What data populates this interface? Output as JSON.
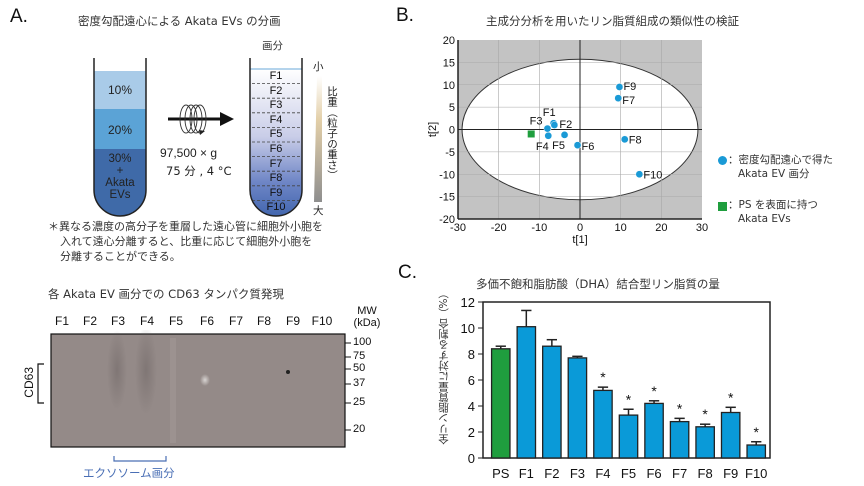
{
  "panelA": {
    "letter": "A.",
    "title": "密度勾配遠心による Akata EVs の分画",
    "tube_left": {
      "layers": [
        {
          "label": "10%",
          "color": "#a9cbe8"
        },
        {
          "label": "20%",
          "color": "#5ba3d6"
        },
        {
          "label_lines": [
            "30%",
            "+",
            "Akata",
            "EVs"
          ],
          "color": "#3f6aa8"
        }
      ]
    },
    "centrifuge": {
      "line1": "97,500 × g",
      "line2": "75 分 , 4 °C"
    },
    "tube_right": {
      "header": "画分",
      "fractions": [
        "F1",
        "F2",
        "F3",
        "F4",
        "F5",
        "F6",
        "F7",
        "F8",
        "F9",
        "F10"
      ]
    },
    "density_scale": {
      "top": "小",
      "bottom": "大",
      "label": "比重（粒子の重さ）"
    },
    "note_lines": [
      "＊異なる濃度の高分子を重層した遠心管に細胞外小胞を",
      "入れて遠心分離すると、比重に応じて細胞外小胞を",
      "分離することができる。"
    ]
  },
  "blot": {
    "title": "各 Akata EV 画分での CD63 タンパク質発現",
    "lanes": [
      "F1",
      "F2",
      "F3",
      "F4",
      "F5",
      "F6",
      "F7",
      "F8",
      "F9",
      "F10"
    ],
    "mw_header": [
      "MW",
      "(kDa)"
    ],
    "mw_markers": [
      "100",
      "75",
      "50",
      "37",
      "25",
      "20"
    ],
    "band_label": "CD63",
    "exosome_label": "エクソソーム画分",
    "exosome_color": "#4a6fb5"
  },
  "panelB": {
    "letter": "B.",
    "chart_data": {
      "type": "scatter",
      "title": "主成分分析を用いたリン脂質組成の類似性の検証",
      "xlabel": "t[1]",
      "ylabel": "t[2]",
      "xlim": [
        -30,
        30
      ],
      "ylim": [
        -20,
        20
      ],
      "xticks": [
        "-30",
        "-20",
        "-10",
        "0",
        "10",
        "20",
        "30"
      ],
      "yticks": [
        "20",
        "15",
        "10",
        "5",
        "0",
        "-5",
        "-10",
        "-15",
        "-20"
      ],
      "ellipse": {
        "rx": 29,
        "ry": 15.7
      },
      "series": [
        {
          "name": "：密度勾配遠心で得た Akata EV 画分",
          "legend_lines": [
            "：密度勾配遠心で得た",
            "Akata EV 画分"
          ],
          "marker": "circle",
          "color": "#1a9ad6",
          "points": [
            {
              "label": "F1",
              "x": -6.5,
              "y": 1.4
            },
            {
              "label": "F2",
              "x": -6.3,
              "y": 1.0
            },
            {
              "label": "F3",
              "x": -8.0,
              "y": 0.2
            },
            {
              "label": "F4",
              "x": -7.8,
              "y": -1.4
            },
            {
              "label": "F5",
              "x": -3.8,
              "y": -1.2
            },
            {
              "label": "F6",
              "x": -0.6,
              "y": -3.5
            },
            {
              "label": "F7",
              "x": 9.4,
              "y": 7.0
            },
            {
              "label": "F8",
              "x": 11.0,
              "y": -2.2
            },
            {
              "label": "F9",
              "x": 9.7,
              "y": 9.5
            },
            {
              "label": "F10",
              "x": 14.6,
              "y": -10.0
            }
          ]
        },
        {
          "name": "：PS を表面に持つ Akata EVs",
          "legend_lines": [
            "：PS を表面に持つ",
            "Akata EVs"
          ],
          "marker": "square",
          "color": "#1f9e3e",
          "points": [
            {
              "label": "",
              "x": -12.0,
              "y": -1.0
            }
          ]
        }
      ]
    }
  },
  "panelC": {
    "letter": "C.",
    "chart_data": {
      "type": "bar",
      "title": "多価不飽和脂肪酸（DHA）結合型リン脂質の量",
      "ylabel": "全リン脂質量に対する割合（%）",
      "xlabel": "",
      "ylim": [
        0,
        12
      ],
      "yticks": [
        "0",
        "2",
        "4",
        "6",
        "8",
        "10",
        "12"
      ],
      "categories": [
        "PS",
        "F1",
        "F2",
        "F3",
        "F4",
        "F5",
        "F6",
        "F7",
        "F8",
        "F9",
        "F10"
      ],
      "values": [
        8.4,
        10.1,
        8.6,
        7.7,
        5.2,
        3.3,
        4.2,
        2.8,
        2.4,
        3.5,
        1.0
      ],
      "errors": [
        0.2,
        1.25,
        0.5,
        0.12,
        0.25,
        0.45,
        0.2,
        0.25,
        0.2,
        0.4,
        0.25
      ],
      "significance": [
        "",
        "",
        "",
        "",
        "*",
        "*",
        "*",
        "*",
        "*",
        "*",
        "*"
      ],
      "colors": [
        "#1f9e3e",
        "#0a9ad8",
        "#0a9ad8",
        "#0a9ad8",
        "#0a9ad8",
        "#0a9ad8",
        "#0a9ad8",
        "#0a9ad8",
        "#0a9ad8",
        "#0a9ad8",
        "#0a9ad8"
      ]
    }
  }
}
